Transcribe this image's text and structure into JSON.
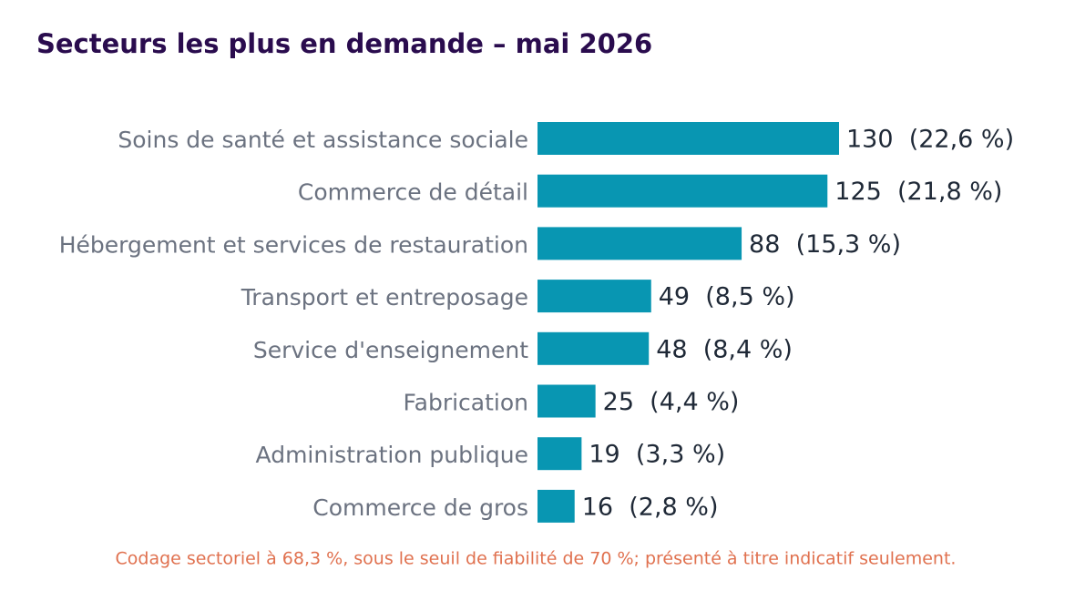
{
  "chart_data": {
    "type": "bar",
    "orientation": "horizontal",
    "title": "Secteurs les plus en demande – mai 2026",
    "categories": [
      "Soins de santé et assistance sociale",
      "Commerce de détail",
      "Hébergement et services de restauration",
      "Transport et entreposage",
      "Service d'enseignement",
      "Fabrication",
      "Administration publique",
      "Commerce de gros"
    ],
    "values": [
      130,
      125,
      88,
      49,
      48,
      25,
      19,
      16
    ],
    "value_labels": [
      "130  (22,6 %)",
      "125  (21,8 %)",
      "88  (15,3 %)",
      "49  (8,5 %)",
      "48  (8,4 %)",
      "25  (4,4 %)",
      "19  (3,3 %)",
      "16  (2,8 %)"
    ],
    "color": "#0896b2",
    "note": "Codage sectoriel à 68,3 %, sous le seuil de fiabilité de 70 %; présenté à titre indicatif seulement."
  }
}
